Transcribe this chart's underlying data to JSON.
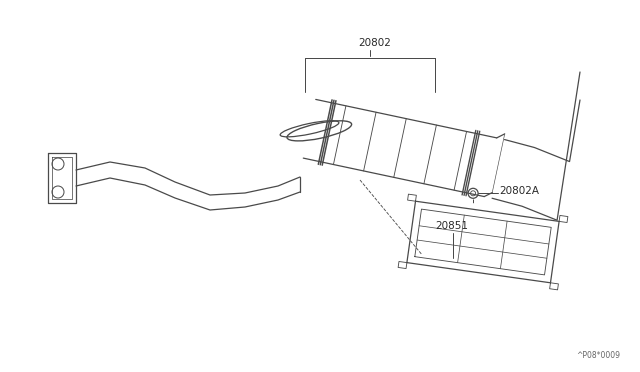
{
  "background_color": "#ffffff",
  "line_color": "#4a4a4a",
  "label_color": "#2a2a2a",
  "watermark": "^P08*0009",
  "figsize": [
    6.4,
    3.72
  ],
  "dpi": 100,
  "label_fontsize": 7.5
}
